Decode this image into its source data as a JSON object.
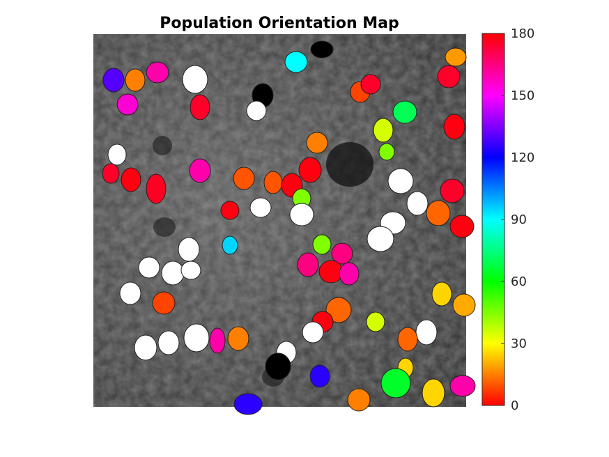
{
  "chart_data": {
    "type": "heatmap",
    "title": "Population Orientation Map",
    "xlabel": "",
    "ylabel": "",
    "image_axis": {
      "xlim": [
        0,
        535
      ],
      "ylim": [
        0,
        535
      ]
    },
    "colorbar": {
      "range": [
        0,
        180
      ],
      "ticks": [
        0,
        30,
        60,
        90,
        120,
        150,
        180
      ],
      "tick_labels": [
        "0",
        "30",
        "60",
        "90",
        "120",
        "150",
        "180"
      ],
      "colormap": "hsv"
    },
    "cells": [
      {
        "x": 14,
        "y": 49,
        "w": 30,
        "h": 34,
        "orientation": 130
      },
      {
        "x": 46,
        "y": 50,
        "w": 28,
        "h": 32,
        "orientation": 15
      },
      {
        "x": 76,
        "y": 40,
        "w": 32,
        "h": 30,
        "orientation": 160
      },
      {
        "x": 128,
        "y": 45,
        "w": 36,
        "h": 40,
        "value": "none"
      },
      {
        "x": 275,
        "y": 25,
        "w": 32,
        "h": 30,
        "orientation": 90
      },
      {
        "x": 312,
        "y": 10,
        "w": 32,
        "h": 24,
        "value": "black"
      },
      {
        "x": 505,
        "y": 20,
        "w": 30,
        "h": 26,
        "orientation": 18
      },
      {
        "x": 494,
        "y": 45,
        "w": 32,
        "h": 32,
        "orientation": 175
      },
      {
        "x": 34,
        "y": 86,
        "w": 30,
        "h": 30,
        "orientation": 155
      },
      {
        "x": 139,
        "y": 87,
        "w": 28,
        "h": 36,
        "orientation": 175
      },
      {
        "x": 228,
        "y": 71,
        "w": 30,
        "h": 34,
        "value": "black"
      },
      {
        "x": 220,
        "y": 96,
        "w": 28,
        "h": 28,
        "value": "none"
      },
      {
        "x": 369,
        "y": 68,
        "w": 28,
        "h": 30,
        "orientation": 8
      },
      {
        "x": 384,
        "y": 58,
        "w": 28,
        "h": 28,
        "orientation": 175
      },
      {
        "x": 430,
        "y": 96,
        "w": 34,
        "h": 32,
        "orientation": 70
      },
      {
        "x": 402,
        "y": 121,
        "w": 28,
        "h": 34,
        "orientation": 35
      },
      {
        "x": 503,
        "y": 115,
        "w": 30,
        "h": 36,
        "orientation": 178
      },
      {
        "x": 306,
        "y": 141,
        "w": 30,
        "h": 30,
        "orientation": 15
      },
      {
        "x": 410,
        "y": 157,
        "w": 22,
        "h": 24,
        "orientation": 45
      },
      {
        "x": 21,
        "y": 158,
        "w": 26,
        "h": 30,
        "value": "none"
      },
      {
        "x": 13,
        "y": 186,
        "w": 24,
        "h": 28,
        "orientation": 175
      },
      {
        "x": 40,
        "y": 192,
        "w": 28,
        "h": 34,
        "orientation": 178
      },
      {
        "x": 76,
        "y": 201,
        "w": 28,
        "h": 42,
        "orientation": 176
      },
      {
        "x": 138,
        "y": 179,
        "w": 30,
        "h": 34,
        "orientation": 160
      },
      {
        "x": 201,
        "y": 191,
        "w": 30,
        "h": 32,
        "orientation": 10
      },
      {
        "x": 245,
        "y": 197,
        "w": 26,
        "h": 32,
        "orientation": 10
      },
      {
        "x": 270,
        "y": 200,
        "w": 30,
        "h": 34,
        "orientation": 178
      },
      {
        "x": 295,
        "y": 177,
        "w": 32,
        "h": 36,
        "orientation": 178
      },
      {
        "x": 423,
        "y": 193,
        "w": 36,
        "h": 36,
        "value": "none"
      },
      {
        "x": 450,
        "y": 226,
        "w": 30,
        "h": 34,
        "value": "none"
      },
      {
        "x": 498,
        "y": 208,
        "w": 34,
        "h": 34,
        "orientation": 175
      },
      {
        "x": 286,
        "y": 222,
        "w": 26,
        "h": 28,
        "orientation": 45
      },
      {
        "x": 183,
        "y": 240,
        "w": 26,
        "h": 26,
        "orientation": 178
      },
      {
        "x": 225,
        "y": 235,
        "w": 30,
        "h": 28,
        "value": "none"
      },
      {
        "x": 282,
        "y": 243,
        "w": 34,
        "h": 32,
        "value": "none"
      },
      {
        "x": 412,
        "y": 255,
        "w": 36,
        "h": 32,
        "value": "none"
      },
      {
        "x": 478,
        "y": 239,
        "w": 34,
        "h": 36,
        "orientation": 12
      },
      {
        "x": 512,
        "y": 260,
        "w": 34,
        "h": 32,
        "orientation": 178
      },
      {
        "x": 393,
        "y": 276,
        "w": 38,
        "h": 36,
        "value": "none"
      },
      {
        "x": 122,
        "y": 292,
        "w": 30,
        "h": 34,
        "value": "none"
      },
      {
        "x": 185,
        "y": 290,
        "w": 22,
        "h": 26,
        "orientation": 95
      },
      {
        "x": 315,
        "y": 288,
        "w": 26,
        "h": 28,
        "orientation": 45
      },
      {
        "x": 342,
        "y": 300,
        "w": 30,
        "h": 30,
        "orientation": 165
      },
      {
        "x": 293,
        "y": 314,
        "w": 30,
        "h": 34,
        "orientation": 165
      },
      {
        "x": 324,
        "y": 325,
        "w": 34,
        "h": 32,
        "orientation": 178
      },
      {
        "x": 353,
        "y": 328,
        "w": 28,
        "h": 32,
        "orientation": 160
      },
      {
        "x": 65,
        "y": 320,
        "w": 30,
        "h": 30,
        "value": "none"
      },
      {
        "x": 98,
        "y": 326,
        "w": 32,
        "h": 34,
        "value": "none"
      },
      {
        "x": 126,
        "y": 326,
        "w": 28,
        "h": 26,
        "value": "none"
      },
      {
        "x": 38,
        "y": 356,
        "w": 30,
        "h": 32,
        "value": "none"
      },
      {
        "x": 85,
        "y": 370,
        "w": 32,
        "h": 32,
        "orientation": 8
      },
      {
        "x": 486,
        "y": 356,
        "w": 28,
        "h": 34,
        "orientation": 25
      },
      {
        "x": 516,
        "y": 373,
        "w": 32,
        "h": 32,
        "orientation": 20
      },
      {
        "x": 334,
        "y": 378,
        "w": 36,
        "h": 36,
        "orientation": 12
      },
      {
        "x": 314,
        "y": 398,
        "w": 30,
        "h": 30,
        "orientation": 178
      },
      {
        "x": 392,
        "y": 399,
        "w": 26,
        "h": 28,
        "orientation": 35
      },
      {
        "x": 300,
        "y": 413,
        "w": 30,
        "h": 30,
        "value": "none"
      },
      {
        "x": 463,
        "y": 410,
        "w": 30,
        "h": 36,
        "value": "none"
      },
      {
        "x": 437,
        "y": 421,
        "w": 28,
        "h": 34,
        "orientation": 12
      },
      {
        "x": 59,
        "y": 432,
        "w": 32,
        "h": 36,
        "value": "none"
      },
      {
        "x": 93,
        "y": 426,
        "w": 30,
        "h": 34,
        "value": "none"
      },
      {
        "x": 130,
        "y": 416,
        "w": 36,
        "h": 40,
        "value": "none"
      },
      {
        "x": 167,
        "y": 422,
        "w": 22,
        "h": 36,
        "orientation": 160
      },
      {
        "x": 193,
        "y": 420,
        "w": 30,
        "h": 34,
        "orientation": 15
      },
      {
        "x": 263,
        "y": 441,
        "w": 28,
        "h": 32,
        "value": "none"
      },
      {
        "x": 247,
        "y": 458,
        "w": 36,
        "h": 38,
        "value": "black"
      },
      {
        "x": 311,
        "y": 475,
        "w": 28,
        "h": 32,
        "orientation": 125
      },
      {
        "x": 437,
        "y": 465,
        "w": 22,
        "h": 28,
        "orientation": 25
      },
      {
        "x": 413,
        "y": 480,
        "w": 42,
        "h": 42,
        "orientation": 65
      },
      {
        "x": 472,
        "y": 495,
        "w": 32,
        "h": 40,
        "orientation": 25
      },
      {
        "x": 512,
        "y": 490,
        "w": 36,
        "h": 30,
        "orientation": 160
      },
      {
        "x": 365,
        "y": 509,
        "w": 32,
        "h": 32,
        "orientation": 15
      },
      {
        "x": 202,
        "y": 516,
        "w": 40,
        "h": 30,
        "orientation": 125
      }
    ]
  }
}
